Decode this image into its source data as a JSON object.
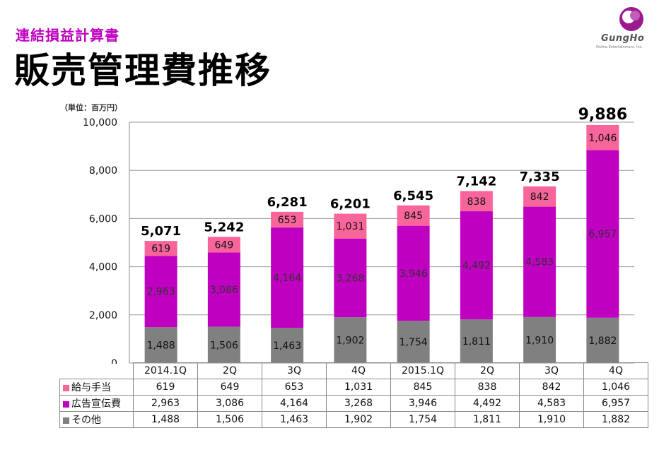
{
  "header": {
    "subtitle": "連結損益計算書",
    "title": "販売管理費推移"
  },
  "logo": {
    "name": "GungHo",
    "tagline": "Online Entertainment, Inc."
  },
  "unit_label": "（単位：百万円）",
  "colors": {
    "salary": "#f7659b",
    "advertising": "#c000c0",
    "other": "#808080"
  },
  "chart_data": {
    "type": "bar",
    "stacked": true,
    "categories": [
      "2014.1Q",
      "2Q",
      "3Q",
      "4Q",
      "2015.1Q",
      "2Q",
      "3Q",
      "4Q"
    ],
    "series": [
      {
        "name": "その他",
        "key": "other",
        "values": [
          1488,
          1506,
          1463,
          1902,
          1754,
          1811,
          1910,
          1882
        ]
      },
      {
        "name": "広告宣伝費",
        "key": "advertising",
        "values": [
          2963,
          3086,
          4164,
          3268,
          3946,
          4492,
          4583,
          6957
        ]
      },
      {
        "name": "給与手当",
        "key": "salary",
        "values": [
          619,
          649,
          653,
          1031,
          845,
          838,
          842,
          1046
        ]
      }
    ],
    "totals": [
      "5,071",
      "5,242",
      "6,281",
      "6,201",
      "6,545",
      "7,142",
      "7,335",
      "9,886"
    ],
    "ylim": [
      0,
      10000
    ],
    "yticks": [
      "0",
      "2,000",
      "4,000",
      "6,000",
      "8,000",
      "10,000"
    ],
    "ytick_values": [
      0,
      2000,
      4000,
      6000,
      8000,
      10000
    ],
    "grid": true,
    "legend": "data-table-bottom"
  },
  "table": {
    "rows": [
      {
        "key": "salary",
        "label": "給与手当",
        "values": [
          "619",
          "649",
          "653",
          "1,031",
          "845",
          "838",
          "842",
          "1,046"
        ]
      },
      {
        "key": "advertising",
        "label": "広告宣伝費",
        "values": [
          "2,963",
          "3,086",
          "4,164",
          "3,268",
          "3,946",
          "4,492",
          "4,583",
          "6,957"
        ]
      },
      {
        "key": "other",
        "label": "その他",
        "values": [
          "1,488",
          "1,506",
          "1,463",
          "1,902",
          "1,754",
          "1,811",
          "1,910",
          "1,882"
        ]
      }
    ]
  }
}
